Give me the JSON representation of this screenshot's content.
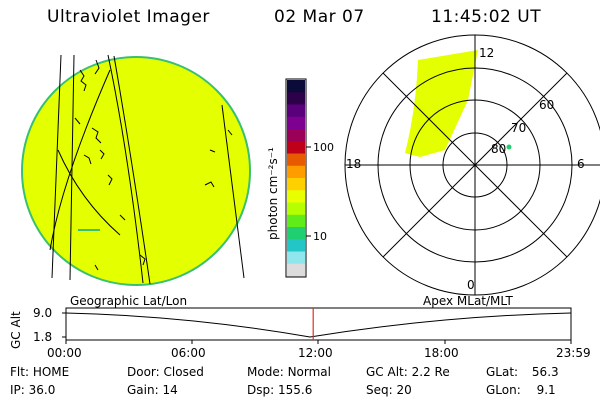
{
  "header": {
    "instrument": "Ultraviolet Imager",
    "date": "02 Mar 07",
    "time": "11:45:02 UT"
  },
  "colorbar": {
    "units": "photon cm⁻²s⁻¹",
    "tick_labels": [
      "100",
      "10"
    ],
    "colors": [
      "#0b0b3a",
      "#2d004a",
      "#5a007a",
      "#7e0090",
      "#9a0058",
      "#c00018",
      "#e85a00",
      "#ff9d00",
      "#ffd000",
      "#e9ff00",
      "#b6ff00",
      "#60ec18",
      "#20d070",
      "#23c6c6",
      "#8fe6ec",
      "#dcdcdc"
    ]
  },
  "polar": {
    "lat_labels": [
      "60",
      "70",
      "80"
    ],
    "mlt_labels": {
      "top": "12",
      "left": "18",
      "right": "6",
      "bottom": "0"
    }
  },
  "timeline": {
    "left_label": "Geographic Lat/Lon",
    "right_label": "Apex MLat/MLT",
    "y_title": "GC Alt",
    "y_ticks": [
      "9.0",
      "1.8"
    ],
    "x_ticks": [
      "00:00",
      "06:00",
      "12:00",
      "18:00",
      "23:59"
    ],
    "current_time_fraction": 0.4896
  },
  "status": {
    "row1": [
      {
        "label": "Flt:",
        "value": "HOME"
      },
      {
        "label": "Door:",
        "value": "Closed"
      },
      {
        "label": "Mode:",
        "value": "Normal"
      },
      {
        "label": "GC Alt:",
        "value": "2.2 Re"
      },
      {
        "label": "GLat:",
        "value": "56.3"
      }
    ],
    "row2": [
      {
        "label": "IP:",
        "value": "36.0"
      },
      {
        "label": "Gain:",
        "value": "14"
      },
      {
        "label": "Dsp:",
        "value": "155.6"
      },
      {
        "label": "Seq:",
        "value": "20"
      },
      {
        "label": "GLon:",
        "value": "9.1"
      }
    ]
  },
  "theme": {
    "image_fill": "#e4ff00",
    "limb": "#38c070",
    "marker": "#e03020"
  }
}
